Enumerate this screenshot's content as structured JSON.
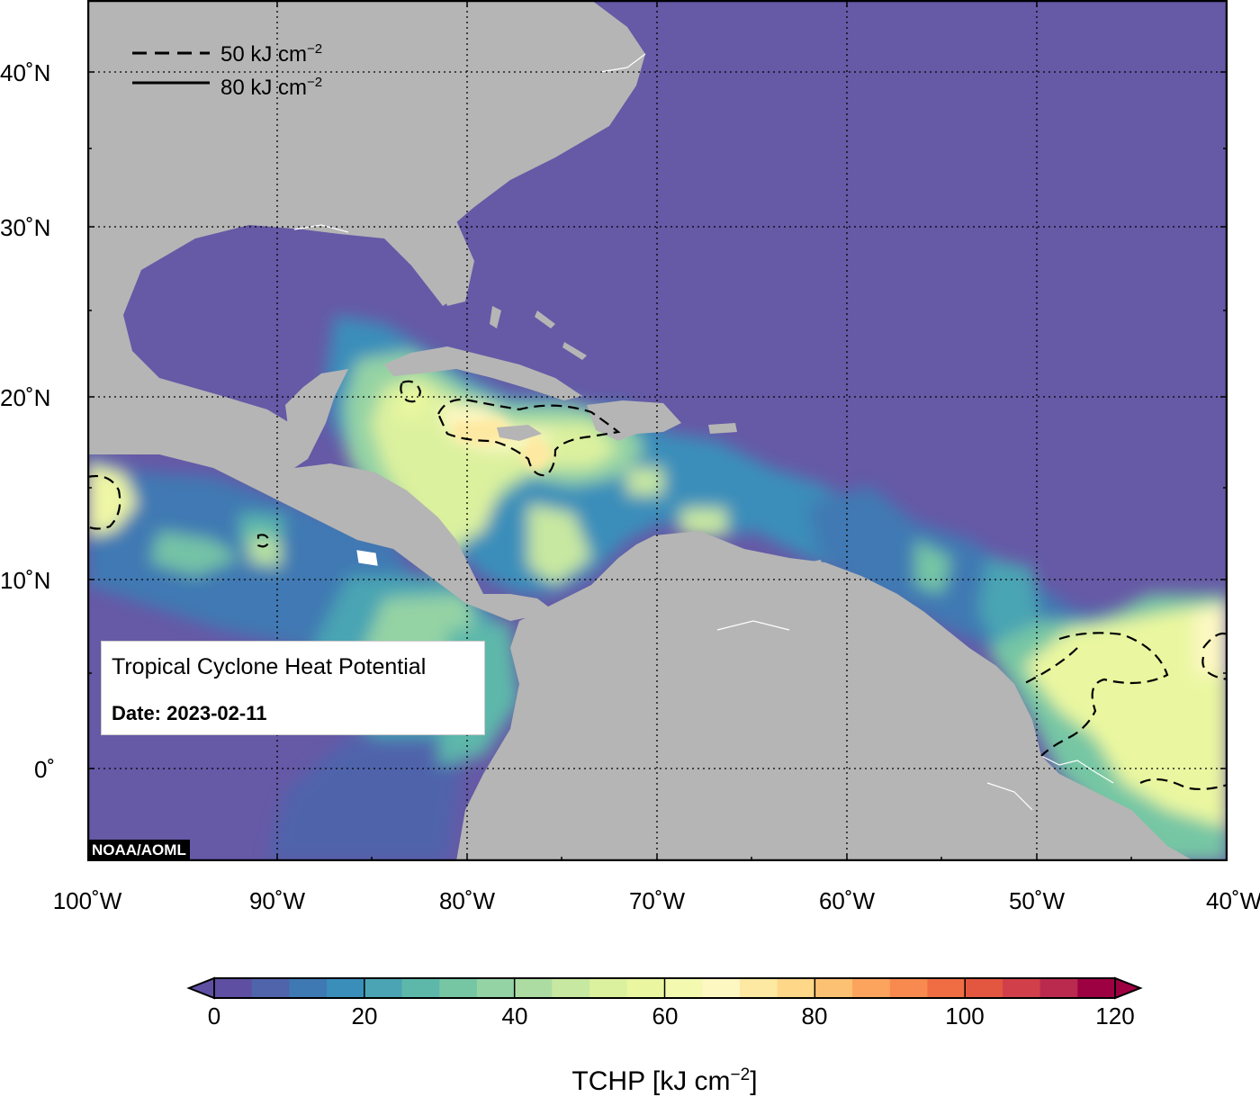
{
  "info": {
    "title": "Tropical Cyclone Heat Potential",
    "date": "Date: 2023-02-11"
  },
  "credit": "NOAA/AOML",
  "contour_legend": [
    {
      "style": "dashed",
      "label": "50 kJ cm",
      "exponent": "−2"
    },
    {
      "style": "solid",
      "label": "80 kJ cm",
      "exponent": "−2"
    }
  ],
  "axes": {
    "lat_labels": [
      "40˚N",
      "30˚N",
      "20˚N",
      "10˚N",
      "0˚"
    ],
    "lon_labels": [
      "100˚W",
      "90˚W",
      "80˚W",
      "70˚W",
      "60˚W",
      "50˚W",
      "40˚W"
    ]
  },
  "colorbar": {
    "ticks": [
      "0",
      "20",
      "40",
      "60",
      "80",
      "100",
      "120"
    ],
    "title": "TCHP [kJ cm",
    "title_exponent": "−2",
    "title_end": "]",
    "min": 0,
    "max": 120,
    "step": 5,
    "colors": [
      "#5e4fa2",
      "#4f64ab",
      "#3f79b3",
      "#3a8eba",
      "#4aa4b3",
      "#5db8aa",
      "#76c6a4",
      "#94d3a4",
      "#addca2",
      "#c7e8a0",
      "#dcf19e",
      "#eaf7a0",
      "#f3fab0",
      "#fdf8c2",
      "#fee9a2",
      "#fed788",
      "#fdc173",
      "#fca45e",
      "#f88a4f",
      "#f06d44",
      "#e3563f",
      "#d1404a",
      "#b92a4e",
      "#9e0142"
    ]
  },
  "colors": {
    "ocean_low": "#6659a6",
    "land": "#b5b5b5",
    "grid": "#000000"
  }
}
